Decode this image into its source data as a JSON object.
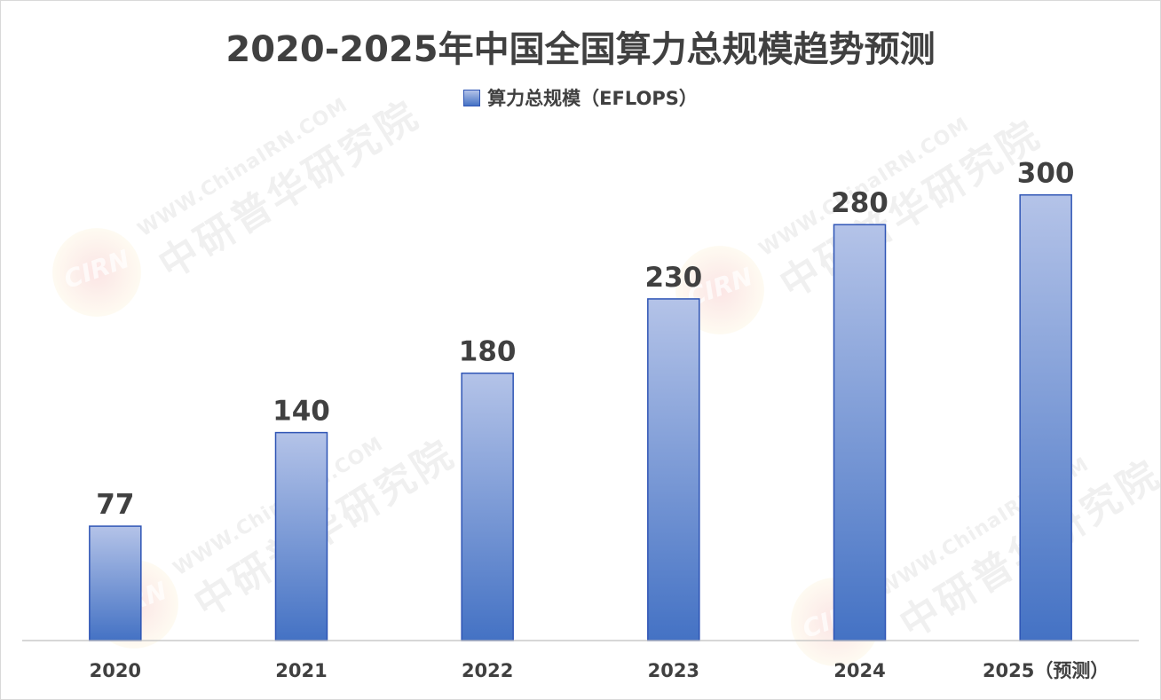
{
  "chart_data": {
    "type": "bar",
    "title": "2020-2025年中国全国算力总规模趋势预测",
    "legend": {
      "label": "算力总规模（EFLOPS）",
      "position": "top"
    },
    "categories": [
      "2020",
      "2021",
      "2022",
      "2023",
      "2024",
      "2025（预测）"
    ],
    "series": [
      {
        "name": "算力总规模（EFLOPS）",
        "values": [
          77,
          140,
          180,
          230,
          280,
          300
        ]
      }
    ],
    "data_labels": [
      "77",
      "140",
      "180",
      "230",
      "280",
      "300"
    ],
    "ylim": [
      0,
      350
    ],
    "grid": false,
    "colors": {
      "bar_top": "#b4c3e8",
      "bar_bottom": "#4472c4",
      "bar_border": "#2f55b5",
      "text": "#404040",
      "axis": "#bfbfbf"
    }
  },
  "watermark": {
    "url": "WWW.ChinaIRN.COM",
    "name": "中研普华研究院",
    "logo": "CIRN"
  }
}
